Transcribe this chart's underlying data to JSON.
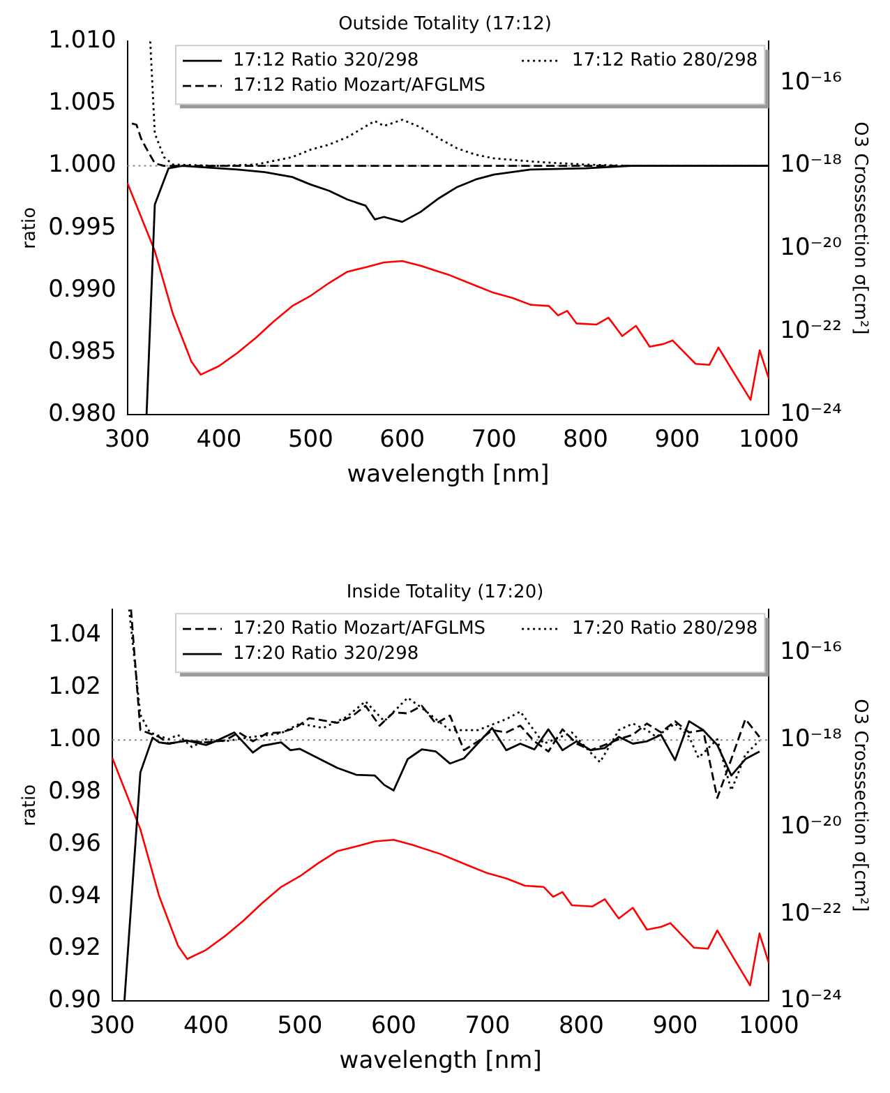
{
  "chart_data": [
    {
      "type": "line",
      "title": "Outside Totality (17:12)",
      "xlabel": "wavelength [nm]",
      "ylabel": "ratio",
      "y2label": "O3 Crosssection σ[cm²]",
      "xlim": [
        300,
        1000
      ],
      "xticks": [
        300,
        400,
        500,
        600,
        700,
        800,
        900,
        1000
      ],
      "ylim": [
        0.98,
        1.01
      ],
      "yticks": [
        {
          "value": 0.98,
          "label": "0.980"
        },
        0.985,
        {
          "value": 0.99,
          "label": "0.990"
        },
        0.995,
        {
          "value": 1,
          "label": "1.000"
        },
        1.005,
        {
          "value": 1.01,
          "label": "1.010"
        }
      ],
      "y2lim": [
        1e-24,
        1e-15
      ],
      "y2ticks": [
        {
          "value": 1e-24,
          "label": "10⁻²⁴"
        },
        {
          "value": 1e-22,
          "label": "10⁻²²"
        },
        {
          "value": 1e-20,
          "label": "10⁻²⁰"
        },
        {
          "value": 1e-18,
          "label": "10⁻¹⁸"
        },
        {
          "value": 1e-16,
          "label": "10⁻¹⁶"
        }
      ],
      "log": "y2",
      "legend": "top right",
      "marker": "none",
      "ref_lines": [
        {
          "axis": "y",
          "value": 1,
          "color": "#7a8aa6",
          "line_style": "dotted"
        }
      ],
      "series": [
        {
          "name": "17:12 Ratio 320/298",
          "color": "#000000",
          "line_style": "solid",
          "x": [
            321,
            330,
            345,
            360,
            420,
            450,
            480,
            500,
            520,
            540,
            560,
            570,
            580,
            600,
            620,
            640,
            660,
            680,
            700,
            740,
            800,
            850,
            1000
          ],
          "values": [
            0.98,
            0.9969,
            0.9998,
            1,
            0.9997,
            0.9995,
            0.9991,
            0.9985,
            0.998,
            0.9973,
            0.9968,
            0.9957,
            0.9959,
            0.9955,
            0.9963,
            0.9974,
            0.9983,
            0.9989,
            0.9993,
            0.9997,
            0.9998,
            1,
            1
          ]
        },
        {
          "name": "17:12 Ratio Mozart/AFGLMS",
          "color": "#000000",
          "line_style": "dashed",
          "x": [
            305,
            310,
            315,
            320,
            330,
            340,
            1000
          ],
          "values": [
            1.0034,
            1.0033,
            1.0022,
            1.0015,
            1.0002,
            1,
            1
          ]
        },
        {
          "name": "17:12 Ratio 280/298",
          "color": "#000000",
          "line_style": "dotted",
          "x": [
            325,
            330,
            340,
            350,
            400,
            440,
            480,
            500,
            520,
            540,
            570,
            580,
            600,
            620,
            640,
            660,
            680,
            700,
            750,
            800,
            850,
            1000
          ],
          "values": [
            1.01,
            1.0026,
            1.0007,
            1.0001,
            1,
            1.0001,
            1.0007,
            1.0013,
            1.0017,
            1.0023,
            1.0036,
            1.0032,
            1.0037,
            1.0031,
            1.0022,
            1.0014,
            1.0009,
            1.0006,
            1.0003,
            1.0001,
            1,
            1
          ]
        },
        {
          "color": "#ff0000",
          "axis": "y2",
          "line_style": "solid",
          "x": [
            300,
            330,
            350,
            370,
            380,
            400,
            420,
            440,
            460,
            480,
            500,
            520,
            540,
            560,
            580,
            600,
            620,
            650,
            680,
            700,
            720,
            740,
            760,
            770,
            780,
            790,
            812,
            825,
            840,
            855,
            870,
            885,
            895,
            920,
            935,
            945,
            960,
            980,
            990,
            1000
          ],
          "values": [
            3.9e-19,
            8.9e-21,
            2.6e-22,
            1.9e-23,
            9.3e-24,
            1.5e-23,
            3.1e-23,
            7.1e-23,
            1.8e-22,
            4.2e-22,
            7.4e-22,
            1.5e-21,
            2.8e-21,
            3.6e-21,
            4.7e-21,
            5.1e-21,
            3.9e-21,
            2.4e-21,
            1.3e-21,
            8.7e-22,
            6.6e-22,
            4.5e-22,
            4.2e-22,
            2.5e-22,
            3.2e-22,
            1.6e-22,
            1.5e-22,
            2.2e-22,
            7.9e-23,
            1.4e-22,
            4.4e-23,
            5.1e-23,
            6.2e-23,
            1.7e-23,
            1.6e-23,
            4.2e-23,
            1.2e-23,
            2.3e-24,
            3.6e-23,
            7.4e-24
          ]
        }
      ]
    },
    {
      "type": "line",
      "title": "Inside Totality (17:20)",
      "xlabel": "wavelength [nm]",
      "ylabel": "ratio",
      "y2label": "O3 Crosssection σ[cm²]",
      "xlim": [
        300,
        1000
      ],
      "xticks": [
        300,
        400,
        500,
        600,
        700,
        800,
        900,
        1000
      ],
      "ylim": [
        0.9,
        1.05
      ],
      "yticks": [
        {
          "value": 0.9,
          "label": "0.90"
        },
        0.92,
        0.94,
        0.96,
        0.98,
        {
          "value": 1,
          "label": "1.00"
        },
        1.02,
        1.04
      ],
      "y2lim": [
        1e-24,
        1e-15
      ],
      "y2ticks": [
        {
          "value": 1e-24,
          "label": "10⁻²⁴"
        },
        {
          "value": 1e-22,
          "label": "10⁻²²"
        },
        {
          "value": 1e-20,
          "label": "10⁻²⁰"
        },
        {
          "value": 1e-18,
          "label": "10⁻¹⁸"
        },
        {
          "value": 1e-16,
          "label": "10⁻¹⁶"
        }
      ],
      "log": "y2",
      "legend": "top right",
      "marker": "none",
      "ref_lines": [
        {
          "axis": "y",
          "value": 1,
          "color": "#7a8aa6",
          "line_style": "dotted"
        }
      ],
      "series": [
        {
          "name": "17:20 Ratio Mozart/AFGLMS",
          "color": "#000000",
          "line_style": "dashed",
          "x": [
            320,
            330,
            350,
            360,
            380,
            400,
            420,
            435,
            450,
            465,
            480,
            495,
            510,
            540,
            555,
            570,
            585,
            600,
            615,
            630,
            645,
            660,
            675,
            690,
            705,
            720,
            735,
            750,
            765,
            780,
            795,
            810,
            825,
            840,
            855,
            870,
            885,
            900,
            915,
            930,
            945,
            960,
            975,
            990
          ],
          "values": [
            1.05,
            1.0038,
            1.0012,
            0.9986,
            0.9998,
            0.9991,
            0.9998,
            1.0029,
            0.9995,
            1.0026,
            1.0029,
            1.0046,
            1.0084,
            1.0066,
            1.0089,
            1.0131,
            1.0055,
            1.0106,
            1.0102,
            1.0131,
            1.0063,
            1.0094,
            0.9961,
            0.9995,
            1.0038,
            1.0029,
            1.0055,
            0.9995,
            0.9956,
            1.0041,
            0.9986,
            0.9961,
            0.9981,
            1.0003,
            1.002,
            1.0063,
            1.0029,
            1.0072,
            1.0029,
            1.0038,
            0.9778,
            0.9927,
            1.008,
            1.0012
          ]
        },
        {
          "name": "17:20 Ratio 320/298",
          "color": "#000000",
          "line_style": "solid",
          "x": [
            313,
            330,
            343,
            350,
            360,
            380,
            400,
            410,
            430,
            450,
            460,
            480,
            490,
            500,
            540,
            560,
            580,
            590,
            600,
            615,
            630,
            645,
            660,
            675,
            705,
            720,
            735,
            750,
            765,
            780,
            795,
            810,
            825,
            840,
            855,
            870,
            885,
            900,
            915,
            930,
            945,
            960,
            975,
            990
          ],
          "values": [
            0.9,
            0.9876,
            1.0009,
            0.9991,
            0.9986,
            0.9998,
            0.9981,
            0.9995,
            1.0029,
            0.9952,
            0.9978,
            0.9991,
            0.9961,
            0.9966,
            0.9893,
            0.9867,
            0.9864,
            0.9828,
            0.9807,
            0.9927,
            0.9964,
            0.9956,
            0.991,
            0.993,
            1.0046,
            0.9961,
            0.9986,
            0.9964,
            1.0041,
            0.9961,
            0.9995,
            0.9961,
            0.9969,
            1.0012,
            0.9986,
            0.9995,
            1.002,
            0.9923,
            1.0072,
            1.0038,
            0.9981,
            0.9864,
            0.9927,
            0.9956
          ]
        },
        {
          "name": "17:20 Ratio 280/298",
          "color": "#000000",
          "line_style": "dotted",
          "x": [
            318,
            330,
            340,
            360,
            370,
            385,
            400,
            420,
            450,
            480,
            500,
            525,
            550,
            570,
            590,
            615,
            630,
            645,
            660,
            690,
            720,
            735,
            760,
            790,
            810,
            820,
            840,
            855,
            870,
            880,
            900,
            915,
            925,
            945,
            960,
            975,
            990
          ],
          "values": [
            1.05,
            1.0097,
            1.0029,
            1.0003,
            1.002,
            0.9973,
            1.0003,
            0.9995,
            1.0012,
            1.0026,
            1.0063,
            1.0046,
            1.0089,
            1.0148,
            1.0072,
            1.0162,
            1.0123,
            1.008,
            1.0038,
            1.0038,
            1.008,
            1.0109,
            0.9986,
            1.0029,
            0.9952,
            0.9915,
            1.0038,
            1.0063,
            1.0038,
            1.0012,
            1.0063,
            1.0012,
            0.9932,
            1.0003,
            0.9807,
            0.9944,
            0.9998
          ]
        },
        {
          "color": "#ff0000",
          "axis": "y2",
          "line_style": "solid",
          "x": [
            300,
            330,
            350,
            370,
            380,
            400,
            420,
            440,
            460,
            480,
            500,
            520,
            540,
            560,
            580,
            600,
            620,
            650,
            680,
            700,
            720,
            740,
            760,
            770,
            780,
            790,
            812,
            825,
            840,
            855,
            870,
            885,
            895,
            920,
            935,
            945,
            960,
            980,
            990,
            1000
          ],
          "values": [
            3.9e-19,
            8.9e-21,
            2.6e-22,
            1.9e-23,
            9.3e-24,
            1.5e-23,
            3.1e-23,
            7.1e-23,
            1.8e-22,
            4.2e-22,
            7.4e-22,
            1.5e-21,
            2.8e-21,
            3.6e-21,
            4.7e-21,
            5.1e-21,
            3.9e-21,
            2.4e-21,
            1.3e-21,
            8.7e-22,
            6.6e-22,
            4.5e-22,
            4.2e-22,
            2.5e-22,
            3.2e-22,
            1.6e-22,
            1.5e-22,
            2.2e-22,
            7.9e-23,
            1.4e-22,
            4.4e-23,
            5.1e-23,
            6.2e-23,
            1.7e-23,
            1.6e-23,
            4.2e-23,
            1.2e-23,
            2.3e-24,
            3.6e-23,
            7.4e-24
          ]
        }
      ]
    }
  ]
}
